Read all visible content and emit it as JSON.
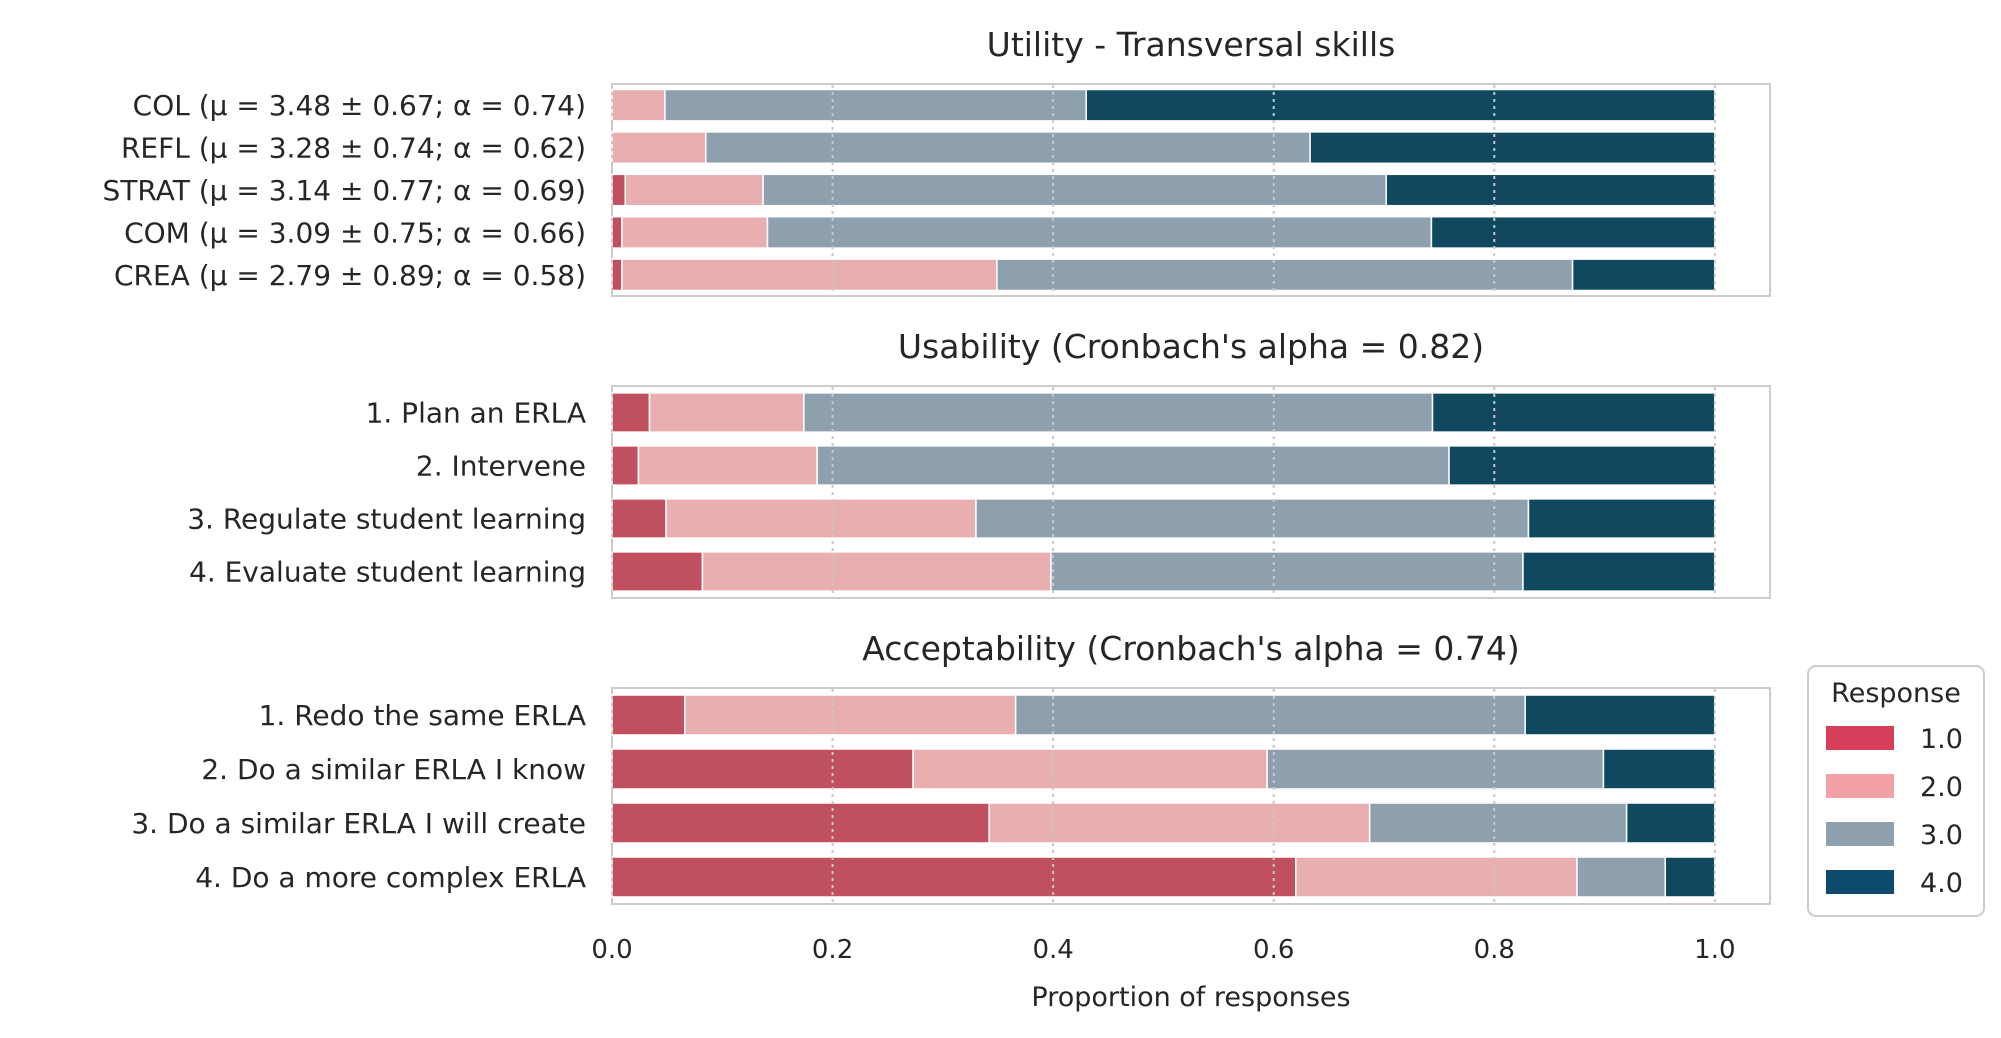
{
  "chart_data": {
    "type": "bar",
    "orientation": "horizontal",
    "stacked": true,
    "xlabel": "Proportion of responses",
    "xlim": [
      0,
      1.05
    ],
    "xticks": [
      "0.0",
      "0.2",
      "0.4",
      "0.6",
      "0.8",
      "1.0"
    ],
    "xtick_values": [
      0,
      0.2,
      0.4,
      0.6,
      0.8,
      1.0
    ],
    "grid": "vertical dotted",
    "legend": {
      "title": "Response",
      "placement": "lower-right outside",
      "entries": [
        {
          "label": "1.0",
          "color": "#d63e5a"
        },
        {
          "label": "2.0",
          "color": "#f2a2a6"
        },
        {
          "label": "3.0",
          "color": "#8e9fae"
        },
        {
          "label": "4.0",
          "color": "#0e4a6b"
        }
      ]
    },
    "panels": [
      {
        "title": "Utility - Transversal skills",
        "categories": [
          "COL (μ = 3.48 ± 0.67; α = 0.74)",
          "REFL (μ = 3.28 ± 0.74; α = 0.62)",
          "STRAT (μ = 3.14 ± 0.77; α = 0.69)",
          "COM (μ = 3.09 ± 0.75; α = 0.66)",
          "CREA (μ = 2.79 ± 0.89; α = 0.58)"
        ],
        "values": [
          [
            0.0,
            0.048,
            0.382,
            0.57
          ],
          [
            0.0,
            0.085,
            0.548,
            0.367
          ],
          [
            0.012,
            0.125,
            0.565,
            0.298
          ],
          [
            0.009,
            0.132,
            0.602,
            0.257
          ],
          [
            0.009,
            0.34,
            0.522,
            0.129
          ]
        ]
      },
      {
        "title": "Usability (Cronbach's alpha = 0.82)",
        "categories": [
          "1. Plan an ERLA",
          "2. Intervene",
          "3. Regulate student learning",
          "4. Evaluate student learning"
        ],
        "values": [
          [
            0.034,
            0.14,
            0.57,
            0.256
          ],
          [
            0.024,
            0.162,
            0.573,
            0.241
          ],
          [
            0.049,
            0.281,
            0.501,
            0.169
          ],
          [
            0.082,
            0.316,
            0.428,
            0.174
          ]
        ]
      },
      {
        "title": "Acceptability (Cronbach's alpha = 0.74)",
        "categories": [
          "1. Redo the same ERLA",
          "2. Do a similar ERLA I know",
          "3. Do a similar ERLA I will create",
          "4. Do a more complex ERLA"
        ],
        "values": [
          [
            0.066,
            0.3,
            0.462,
            0.172
          ],
          [
            0.273,
            0.321,
            0.305,
            0.101
          ],
          [
            0.342,
            0.345,
            0.233,
            0.08
          ],
          [
            0.62,
            0.255,
            0.08,
            0.045
          ]
        ]
      }
    ]
  }
}
